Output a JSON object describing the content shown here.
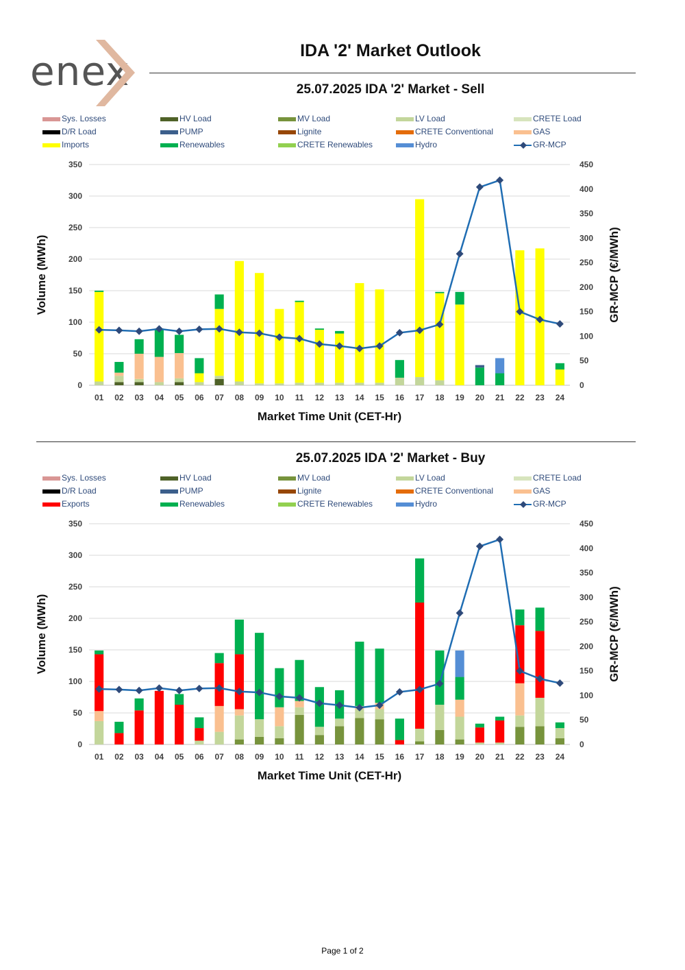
{
  "header": {
    "logo_text": "enex",
    "report_title": "IDA '2' Market Outlook"
  },
  "colors": {
    "sys_losses": "#d99694",
    "hv_load": "#4f6228",
    "mv_load": "#77933c",
    "lv_load": "#c3d69b",
    "crete_load": "#d7e4bd",
    "dr_load": "#000000",
    "pump": "#3c5f8c",
    "lignite": "#974706",
    "crete_conventional": "#e46c0a",
    "gas": "#fac090",
    "imports": "#ffff00",
    "exports": "#ff0000",
    "renewables": "#00b050",
    "crete_renewables": "#92d050",
    "hydro": "#558ed5",
    "gr_mcp": "#1f6db3",
    "gr_mcp_marker": "#2e4a7a",
    "logo_chevron": "#e0b8a0"
  },
  "legend_sell": [
    "Sys. Losses",
    "HV Load",
    "MV Load",
    "LV Load",
    "CRETE Load",
    "D/R Load",
    "PUMP",
    "Lignite",
    "CRETE Conventional",
    "GAS",
    "Imports",
    "Renewables",
    "CRETE Renewables",
    "Hydro",
    "GR-MCP"
  ],
  "legend_buy": [
    "Sys. Losses",
    "HV Load",
    "MV Load",
    "LV Load",
    "CRETE Load",
    "D/R Load",
    "PUMP",
    "Lignite",
    "CRETE Conventional",
    "GAS",
    "Exports",
    "Renewables",
    "CRETE Renewables",
    "Hydro",
    "GR-MCP"
  ],
  "footer": {
    "page_label": "Page 1 of 2"
  },
  "chart_data": [
    {
      "type": "bar",
      "stacked": true,
      "title": "25.07.2025  IDA '2' Market - Sell",
      "xlabel": "Market Time Unit (CET-Hr)",
      "ylabel": "Volume (MWh)",
      "y2label": "GR-MCP (€/MWh)",
      "ylim": [
        0,
        350
      ],
      "yticks": [
        0,
        50,
        100,
        150,
        200,
        250,
        300,
        350
      ],
      "y2lim": [
        0,
        450
      ],
      "y2ticks": [
        0,
        50,
        100,
        150,
        200,
        250,
        300,
        350,
        400,
        450
      ],
      "categories": [
        "01",
        "02",
        "03",
        "04",
        "05",
        "06",
        "07",
        "08",
        "09",
        "10",
        "11",
        "12",
        "13",
        "14",
        "15",
        "16",
        "17",
        "18",
        "19",
        "20",
        "21",
        "22",
        "23",
        "24"
      ],
      "series": [
        {
          "name": "HV Load",
          "key": "hv_load",
          "values": [
            0,
            5,
            5,
            0,
            5,
            0,
            10,
            0,
            0,
            0,
            0,
            0,
            0,
            0,
            0,
            0,
            0,
            0,
            0,
            0,
            0,
            0,
            0,
            0
          ]
        },
        {
          "name": "LV Load",
          "key": "lv_load",
          "values": [
            6,
            10,
            5,
            5,
            6,
            5,
            5,
            6,
            3,
            3,
            4,
            4,
            4,
            4,
            4,
            12,
            13,
            8,
            0,
            0,
            0,
            0,
            0,
            0
          ]
        },
        {
          "name": "GAS",
          "key": "gas",
          "values": [
            0,
            5,
            40,
            40,
            40,
            0,
            0,
            0,
            0,
            0,
            0,
            0,
            0,
            0,
            0,
            0,
            0,
            0,
            0,
            0,
            0,
            0,
            0,
            0
          ]
        },
        {
          "name": "Imports",
          "key": "imports",
          "values": [
            142,
            0,
            0,
            0,
            0,
            14,
            106,
            191,
            175,
            118,
            128,
            84,
            78,
            158,
            148,
            0,
            282,
            138,
            128,
            0,
            0,
            214,
            217,
            25
          ]
        },
        {
          "name": "Renewables",
          "key": "renewables",
          "values": [
            2,
            17,
            23,
            45,
            29,
            24,
            23,
            0,
            0,
            0,
            2,
            2,
            4,
            0,
            0,
            28,
            0,
            2,
            20,
            28,
            19,
            0,
            0,
            10
          ]
        },
        {
          "name": "PUMP",
          "key": "pump",
          "values": [
            0,
            0,
            0,
            0,
            0,
            0,
            0,
            0,
            0,
            0,
            0,
            0,
            0,
            0,
            0,
            0,
            0,
            0,
            0,
            4,
            0,
            0,
            0,
            0
          ]
        },
        {
          "name": "Hydro",
          "key": "hydro",
          "values": [
            0,
            0,
            0,
            0,
            0,
            0,
            0,
            0,
            0,
            0,
            0,
            0,
            0,
            0,
            0,
            0,
            0,
            0,
            0,
            0,
            24,
            0,
            0,
            0
          ]
        }
      ],
      "line": {
        "name": "GR-MCP",
        "axis": "right",
        "values": [
          113,
          112,
          110,
          115,
          110,
          114,
          115,
          108,
          106,
          98,
          95,
          84,
          80,
          75,
          80,
          107,
          112,
          124,
          268,
          404,
          418,
          150,
          134,
          125
        ]
      }
    },
    {
      "type": "bar",
      "stacked": true,
      "title": "25.07.2025  IDA '2' Market - Buy",
      "xlabel": "Market Time Unit (CET-Hr)",
      "ylabel": "Volume (MWh)",
      "y2label": "GR-MCP (€/MWh)",
      "ylim": [
        0,
        350
      ],
      "yticks": [
        0,
        50,
        100,
        150,
        200,
        250,
        300,
        350
      ],
      "y2lim": [
        0,
        450
      ],
      "y2ticks": [
        0,
        50,
        100,
        150,
        200,
        250,
        300,
        350,
        400,
        450
      ],
      "categories": [
        "01",
        "02",
        "03",
        "04",
        "05",
        "06",
        "07",
        "08",
        "09",
        "10",
        "11",
        "12",
        "13",
        "14",
        "15",
        "16",
        "17",
        "18",
        "19",
        "20",
        "21",
        "22",
        "23",
        "24"
      ],
      "series": [
        {
          "name": "MV Load",
          "key": "mv_load",
          "values": [
            0,
            0,
            0,
            0,
            0,
            0,
            0,
            8,
            12,
            10,
            47,
            15,
            29,
            42,
            40,
            0,
            5,
            23,
            8,
            0,
            0,
            28,
            29,
            10
          ]
        },
        {
          "name": "LV Load",
          "key": "lv_load",
          "values": [
            37,
            0,
            0,
            0,
            0,
            6,
            20,
            38,
            28,
            19,
            12,
            13,
            12,
            14,
            16,
            0,
            20,
            40,
            36,
            3,
            3,
            18,
            45,
            16
          ]
        },
        {
          "name": "GAS",
          "key": "gas",
          "values": [
            16,
            0,
            0,
            0,
            0,
            0,
            41,
            10,
            0,
            30,
            10,
            0,
            0,
            5,
            10,
            0,
            0,
            0,
            27,
            0,
            0,
            51,
            0,
            0
          ]
        },
        {
          "name": "Exports",
          "key": "exports",
          "values": [
            90,
            18,
            54,
            85,
            63,
            20,
            68,
            87,
            0,
            0,
            0,
            0,
            0,
            0,
            0,
            7,
            200,
            0,
            0,
            24,
            35,
            92,
            106,
            0
          ]
        },
        {
          "name": "Renewables",
          "key": "renewables",
          "values": [
            6,
            18,
            19,
            0,
            17,
            17,
            16,
            55,
            137,
            62,
            65,
            63,
            45,
            102,
            86,
            34,
            70,
            86,
            36,
            6,
            6,
            25,
            37,
            9
          ]
        },
        {
          "name": "Hydro",
          "key": "hydro",
          "values": [
            0,
            0,
            0,
            0,
            0,
            0,
            0,
            0,
            0,
            0,
            0,
            0,
            0,
            0,
            0,
            0,
            0,
            0,
            42,
            0,
            0,
            0,
            0,
            0
          ]
        }
      ],
      "line": {
        "name": "GR-MCP",
        "axis": "right",
        "values": [
          113,
          112,
          110,
          115,
          110,
          114,
          115,
          108,
          106,
          98,
          95,
          84,
          80,
          75,
          80,
          107,
          112,
          124,
          268,
          404,
          418,
          150,
          134,
          125
        ]
      }
    }
  ]
}
